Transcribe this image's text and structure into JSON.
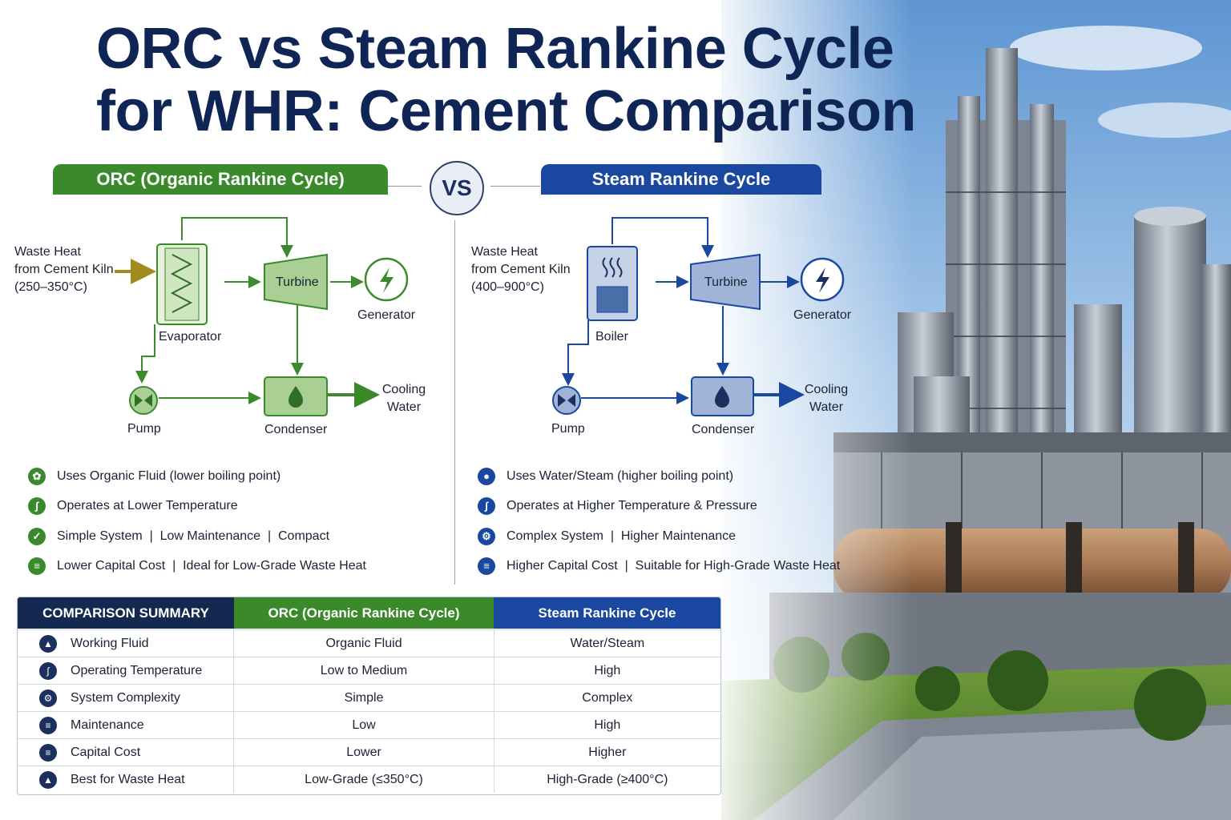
{
  "title": {
    "line1": "ORC vs Steam Rankine Cycle",
    "line2": "for WHR: Cement Comparison"
  },
  "vs_label": "VS",
  "orc": {
    "header": "ORC (Organic Rankine Cycle)",
    "waste_heat_line1": "Waste Heat",
    "waste_heat_line2": "from Cement Kiln",
    "waste_heat_line3": "(250–350°C)",
    "evaporator": "Evaporator",
    "turbine": "Turbine",
    "generator": "Generator",
    "condenser": "Condenser",
    "pump": "Pump",
    "cooling_line1": "Cooling",
    "cooling_line2": "Water",
    "features": [
      {
        "icon": "leaf-icon",
        "text": "Uses Organic Fluid (lower boiling point)"
      },
      {
        "icon": "thermometer-icon",
        "text": "Operates at Lower Temperature"
      },
      {
        "icon": "check-icon",
        "text": "Simple System  |  Low Maintenance  |  Compact"
      },
      {
        "icon": "coins-icon",
        "text": "Lower Capital Cost  |  Ideal for Low-Grade Waste Heat"
      }
    ]
  },
  "steam": {
    "header": "Steam Rankine Cycle",
    "waste_heat_line1": "Waste Heat",
    "waste_heat_line2": "from Cement Kiln",
    "waste_heat_line3": "(400–900°C)",
    "boiler": "Boiler",
    "turbine": "Turbine",
    "generator": "Generator",
    "condenser": "Condenser",
    "pump": "Pump",
    "cooling_line1": "Cooling",
    "cooling_line2": "Water",
    "features": [
      {
        "icon": "water-drop-icon",
        "text": "Uses Water/Steam (higher boiling point)"
      },
      {
        "icon": "thermometer-icon",
        "text": "Operates at Higher Temperature & Pressure"
      },
      {
        "icon": "gear-icon",
        "text": "Complex System  |  Higher Maintenance"
      },
      {
        "icon": "coins-icon",
        "text": "Higher Capital Cost  |  Suitable for High-Grade Waste Heat"
      }
    ]
  },
  "comparison": {
    "headers": [
      "COMPARISON SUMMARY",
      "ORC (Organic Rankine Cycle)",
      "Steam Rankine Cycle"
    ],
    "rows": [
      {
        "icon": "flask-icon",
        "label": "Working Fluid",
        "orc": "Organic Fluid",
        "steam": "Water/Steam"
      },
      {
        "icon": "thermometer-icon",
        "label": "Operating Temperature",
        "orc": "Low to Medium",
        "steam": "High"
      },
      {
        "icon": "gear-icon",
        "label": "System Complexity",
        "orc": "Simple",
        "steam": "Complex"
      },
      {
        "icon": "wrench-icon",
        "label": "Maintenance",
        "orc": "Low",
        "steam": "High"
      },
      {
        "icon": "coins-icon",
        "label": "Capital Cost",
        "orc": "Lower",
        "steam": "Higher"
      },
      {
        "icon": "factory-icon",
        "label": "Best for Waste Heat",
        "orc": "Low-Grade (≤350°C)",
        "steam": "High-Grade (≥400°C)"
      }
    ]
  },
  "colors": {
    "orc_green": "#3a8a2c",
    "steam_blue": "#1a47a0",
    "title_navy": "#0f2556"
  }
}
